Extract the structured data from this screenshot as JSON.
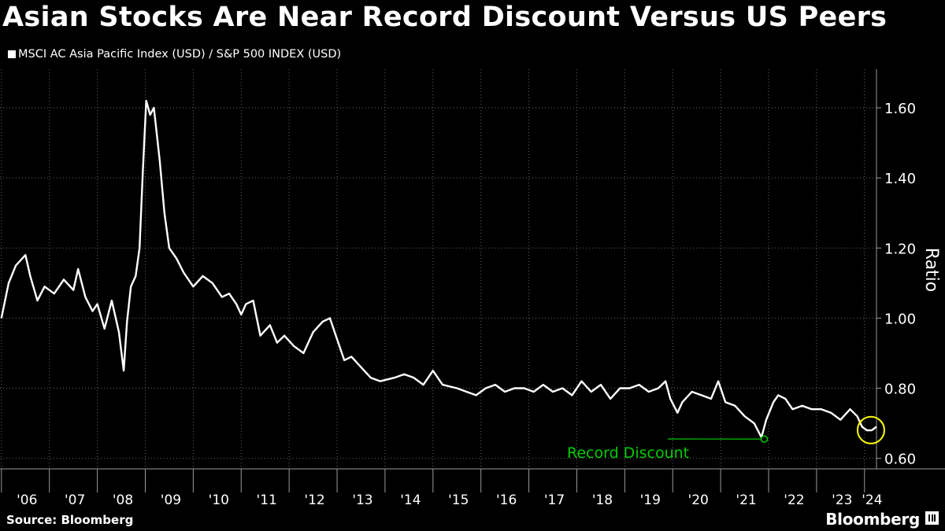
{
  "title": "Asian Stocks Are Near Record Discount Versus US Peers",
  "source": "Source: Bloomberg",
  "brand": "Bloomberg",
  "colors": {
    "background": "#000000",
    "line": "#ffffff",
    "grid": "#666666",
    "annotation": "#00cc00",
    "highlight": "#ffff00"
  },
  "chart_data": {
    "type": "line",
    "title": "Asian Stocks Are Near Record Discount Versus US Peers",
    "legend": [
      {
        "name": "MSCI AC Asia Pacific Index (USD) / S&P 500 INDEX (USD)",
        "color": "#ffffff"
      }
    ],
    "ylabel": "Ratio",
    "ylim": [
      0.57,
      1.71
    ],
    "xlim": [
      2005.97,
      2024.25
    ],
    "y_ticks": [
      0.6,
      0.8,
      1.0,
      1.2,
      1.4,
      1.6
    ],
    "y_tick_labels": [
      "0.60",
      "0.80",
      "1.00",
      "1.20",
      "1.40",
      "1.60"
    ],
    "x_tick_labels": [
      "'06",
      "'07",
      "'08",
      "'09",
      "'10",
      "'11",
      "'12",
      "'13",
      "'14",
      "'15",
      "'16",
      "'17",
      "'18",
      "'19",
      "'20",
      "'21",
      "'22",
      "'23",
      "'24"
    ],
    "x_tick_years": [
      2006,
      2007,
      2008,
      2009,
      2010,
      2011,
      2012,
      2013,
      2014,
      2015,
      2016,
      2017,
      2018,
      2019,
      2020,
      2021,
      2022,
      2023,
      2024
    ],
    "grid": true,
    "legend_position": "top-left",
    "series": [
      {
        "name": "MSCI AC Asia Pacific Index (USD) / S&P 500 INDEX (USD)",
        "x": [
          2006.0,
          2006.15,
          2006.3,
          2006.5,
          2006.6,
          2006.75,
          2006.9,
          2007.1,
          2007.3,
          2007.5,
          2007.6,
          2007.75,
          2007.9,
          2008.0,
          2008.15,
          2008.3,
          2008.45,
          2008.55,
          2008.62,
          2008.7,
          2008.8,
          2008.88,
          2008.95,
          2009.02,
          2009.1,
          2009.18,
          2009.3,
          2009.4,
          2009.5,
          2009.65,
          2009.8,
          2010.0,
          2010.2,
          2010.4,
          2010.6,
          2010.75,
          2010.9,
          2011.0,
          2011.1,
          2011.25,
          2011.4,
          2011.6,
          2011.75,
          2011.9,
          2012.1,
          2012.3,
          2012.5,
          2012.7,
          2012.85,
          2013.0,
          2013.15,
          2013.3,
          2013.5,
          2013.7,
          2013.9,
          2014.2,
          2014.4,
          2014.6,
          2014.8,
          2015.0,
          2015.2,
          2015.5,
          2015.7,
          2015.9,
          2016.1,
          2016.3,
          2016.5,
          2016.7,
          2016.9,
          2017.1,
          2017.3,
          2017.5,
          2017.7,
          2017.9,
          2018.1,
          2018.3,
          2018.5,
          2018.7,
          2018.9,
          2019.1,
          2019.3,
          2019.5,
          2019.7,
          2019.85,
          2019.95,
          2020.1,
          2020.2,
          2020.4,
          2020.6,
          2020.8,
          2020.95,
          2021.1,
          2021.3,
          2021.5,
          2021.7,
          2021.85,
          2021.95,
          2022.1,
          2022.2,
          2022.35,
          2022.5,
          2022.7,
          2022.9,
          2023.1,
          2023.3,
          2023.5,
          2023.7,
          2023.85,
          2023.95,
          2024.05,
          2024.15,
          2024.25
        ],
        "values": [
          1.0,
          1.1,
          1.15,
          1.18,
          1.12,
          1.05,
          1.09,
          1.07,
          1.11,
          1.08,
          1.14,
          1.06,
          1.02,
          1.04,
          0.97,
          1.05,
          0.96,
          0.85,
          0.99,
          1.09,
          1.12,
          1.2,
          1.42,
          1.62,
          1.58,
          1.6,
          1.45,
          1.3,
          1.2,
          1.17,
          1.13,
          1.09,
          1.12,
          1.1,
          1.06,
          1.07,
          1.04,
          1.01,
          1.04,
          1.05,
          0.95,
          0.98,
          0.93,
          0.95,
          0.92,
          0.9,
          0.96,
          0.99,
          1.0,
          0.94,
          0.88,
          0.89,
          0.86,
          0.83,
          0.82,
          0.83,
          0.84,
          0.83,
          0.81,
          0.85,
          0.81,
          0.8,
          0.79,
          0.78,
          0.8,
          0.81,
          0.79,
          0.8,
          0.8,
          0.79,
          0.81,
          0.79,
          0.8,
          0.78,
          0.82,
          0.79,
          0.81,
          0.77,
          0.8,
          0.8,
          0.81,
          0.79,
          0.8,
          0.82,
          0.77,
          0.73,
          0.76,
          0.79,
          0.78,
          0.77,
          0.82,
          0.76,
          0.75,
          0.72,
          0.7,
          0.66,
          0.71,
          0.76,
          0.78,
          0.77,
          0.74,
          0.75,
          0.74,
          0.74,
          0.73,
          0.71,
          0.74,
          0.72,
          0.69,
          0.68,
          0.68,
          0.69
        ]
      }
    ],
    "annotations": [
      {
        "text": "Record Discount",
        "x": 2021.91,
        "y": 0.655
      },
      {
        "text": "",
        "x": 2024.2,
        "y": 0.685,
        "shape": "circle"
      }
    ]
  }
}
